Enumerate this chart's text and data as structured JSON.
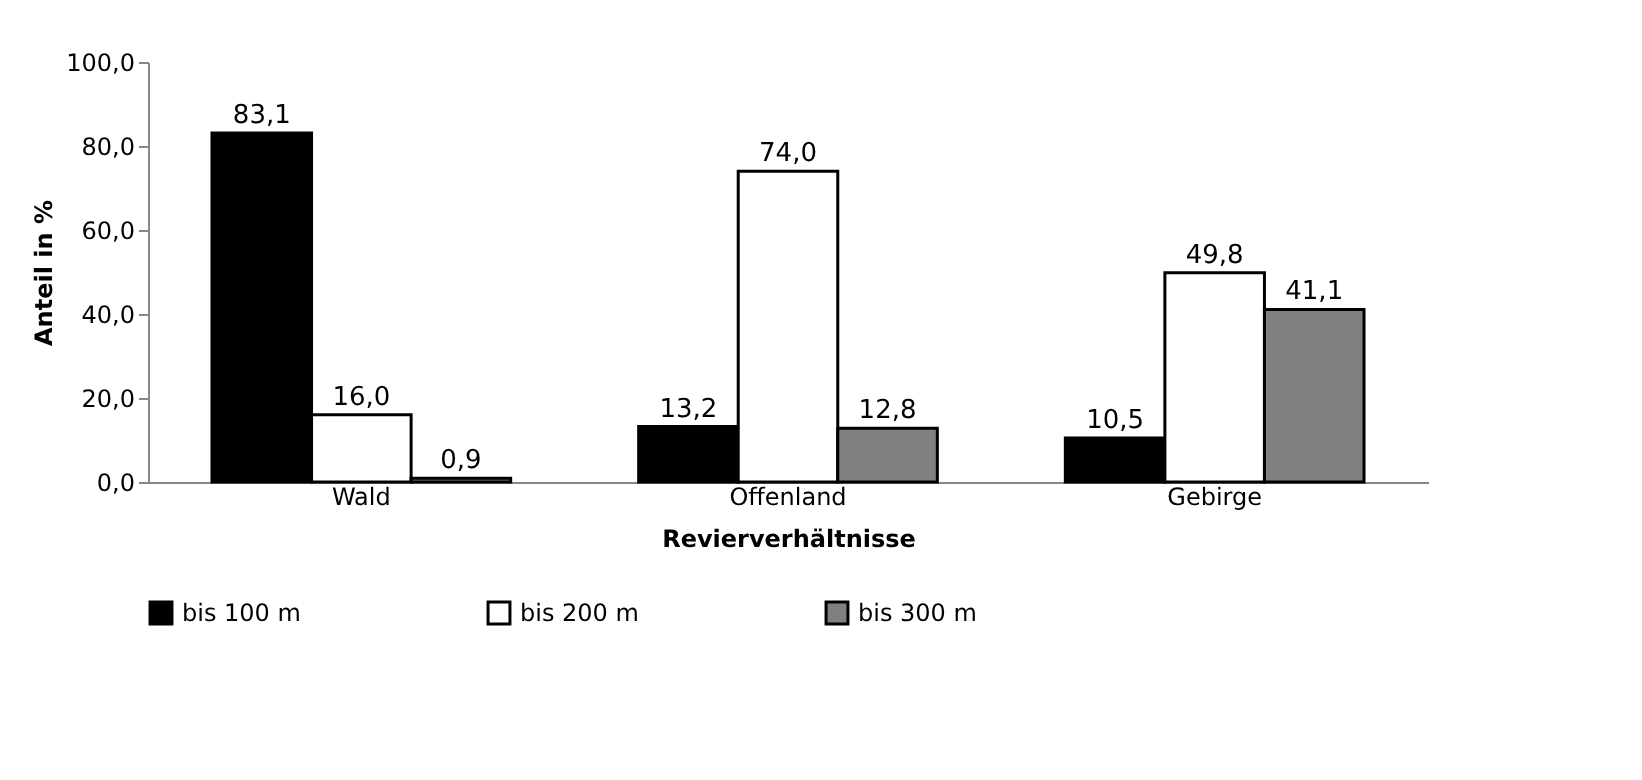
{
  "chart_data": {
    "type": "bar",
    "categories": [
      "Wald",
      "Offenland",
      "Gebirge"
    ],
    "xlabel": "Revierverhältnisse",
    "ylabel": "Anteil in %",
    "ylim": [
      0,
      100
    ],
    "yticks": [
      {
        "value": 0,
        "label": "0,0"
      },
      {
        "value": 20,
        "label": "20,0"
      },
      {
        "value": 40,
        "label": "40,0"
      },
      {
        "value": 60,
        "label": "60,0"
      },
      {
        "value": 80,
        "label": "80,0"
      },
      {
        "value": 100,
        "label": "100,0"
      }
    ],
    "series": [
      {
        "name": "bis 100 m",
        "color": "#000000",
        "values": [
          83.1,
          13.2,
          10.5
        ],
        "value_labels": [
          "83,1",
          "13,2",
          "10,5"
        ]
      },
      {
        "name": "bis 200 m",
        "color": "#ffffff",
        "values": [
          16.0,
          74.0,
          49.8
        ],
        "value_labels": [
          "16,0",
          "74,0",
          "49,8"
        ]
      },
      {
        "name": "bis 300 m",
        "color": "#808080",
        "values": [
          0.9,
          12.8,
          41.1
        ],
        "value_labels": [
          "0,9",
          "12,8",
          "41,1"
        ]
      }
    ],
    "legend": "bottom",
    "grid": false
  }
}
